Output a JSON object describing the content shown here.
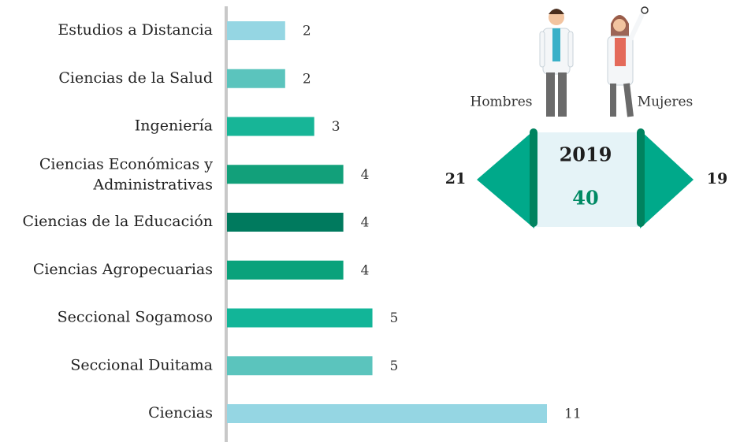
{
  "chart_data": {
    "type": "bar",
    "orientation": "horizontal",
    "categories": [
      "Estudios a Distancia",
      "Ciencias de la Salud",
      "Ingeniería",
      "Ciencias Económicas y Administrativas",
      "Ciencias de la Educación",
      "Ciencias Agropecuarias",
      "Seccional Sogamoso",
      "Seccional Duitama",
      "Ciencias"
    ],
    "values": [
      2,
      2,
      3,
      4,
      4,
      4,
      5,
      5,
      11
    ],
    "colors": [
      "#95d6e3",
      "#5bc4bd",
      "#17b597",
      "#12a07a",
      "#007a5e",
      "#0aa27b",
      "#12b598",
      "#5bc4bd",
      "#95d6e3"
    ],
    "xlim": [
      0,
      11
    ]
  },
  "infographic": {
    "men_label": "Hombres",
    "women_label": "Mujeres",
    "year": "2019",
    "total": 40,
    "men": 21,
    "women": 19
  }
}
